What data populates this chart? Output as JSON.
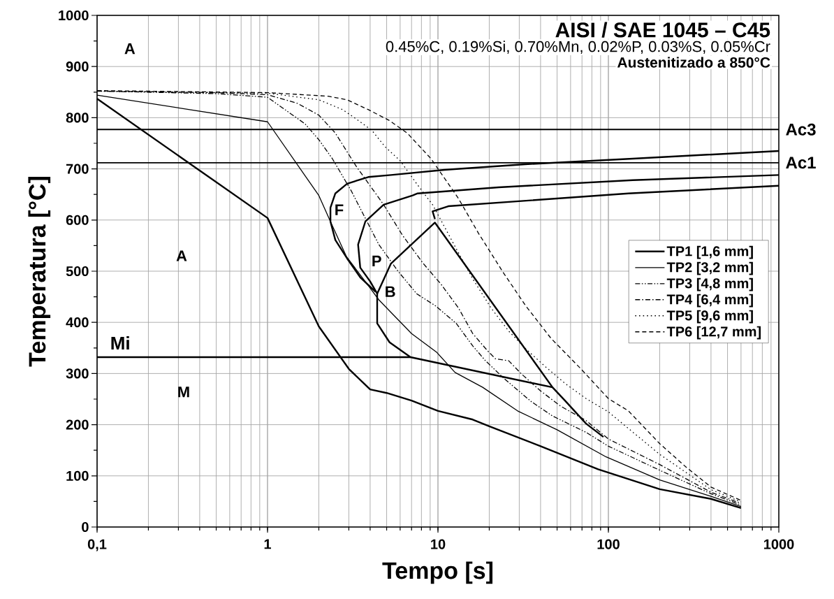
{
  "chart_data": {
    "type": "line",
    "title": "AISI / SAE 1045 – C45",
    "subtitle": "0.45%C, 0.19%Si, 0.70%Mn, 0.02%P, 0.03%S, 0.05%Cr",
    "xlabel": "Tempo [s]",
    "ylabel": "Temperatura [°C]",
    "log": "x",
    "grid": true,
    "legend": "right",
    "xlim": [
      0.1,
      1000
    ],
    "ylim": [
      0,
      1000
    ],
    "xticks": [
      {
        "value": 0.1,
        "label": "0,1"
      },
      1,
      10,
      100,
      1000
    ],
    "yticks": [
      0,
      100,
      200,
      300,
      400,
      500,
      600,
      700,
      800,
      900,
      1000
    ],
    "ref_lines": [
      {
        "axis": "y",
        "value": 777,
        "label": "Ac3"
      },
      {
        "axis": "y",
        "value": 712,
        "label": "Ac1"
      }
    ],
    "annotations": [
      "Austenitizado a 850°C",
      "A",
      "A",
      "M",
      "Mi",
      "F",
      "P",
      "B"
    ],
    "series": [
      {
        "name": "TP1 [1,6 mm]",
        "color": "#000000",
        "line_style": "solid",
        "x": [
          0.1,
          1,
          2,
          3,
          4,
          5,
          7,
          10,
          16,
          20,
          40,
          87,
          200,
          400,
          600
        ],
        "values": [
          837,
          604,
          392,
          309,
          269,
          262,
          247,
          227,
          210,
          197,
          158,
          113,
          74,
          55,
          37
        ]
      },
      {
        "name": "TP2 [3,2 mm]",
        "color": "#000000",
        "line_style": "solid",
        "x": [
          0.1,
          1,
          2,
          2.34,
          2.9,
          4,
          4.5,
          7,
          9.8,
          12.6,
          18.3,
          29.3,
          50,
          97,
          200,
          400,
          600
        ],
        "values": [
          844,
          792,
          648,
          597,
          529,
          467,
          444,
          378,
          342,
          302,
          273,
          227,
          190,
          137,
          92,
          60,
          40
        ]
      },
      {
        "name": "TP3 [4,8 mm]",
        "color": "#000000",
        "line_style": "dashdotdot",
        "x": [
          0.1,
          0.5,
          1,
          1.66,
          2,
          2.4,
          3.1,
          4.5,
          5.8,
          7.5,
          9.7,
          12.8,
          16,
          19,
          24.3,
          35,
          47,
          74,
          100,
          200,
          400,
          600
        ],
        "values": [
          852,
          847,
          840,
          788,
          757,
          720,
          657,
          552,
          501,
          456,
          432,
          398,
          354,
          325,
          291,
          246,
          217,
          185,
          158,
          111,
          65,
          43
        ]
      },
      {
        "name": "TP4 [6,4 mm]",
        "color": "#000000",
        "line_style": "dashdot",
        "x": [
          0.1,
          0.5,
          1,
          1.5,
          2,
          2.5,
          3.3,
          4.8,
          6.2,
          8.2,
          10.4,
          13.2,
          16,
          19.6,
          21.7,
          26,
          30.7,
          40,
          52.6,
          74,
          100,
          200,
          400,
          600
        ],
        "values": [
          852,
          849,
          845,
          828,
          805,
          770,
          706,
          630,
          570,
          515,
          475,
          428,
          378,
          344,
          329,
          325,
          300,
          266,
          236,
          208,
          172,
          122,
          68,
          46
        ]
      },
      {
        "name": "TP5 [9,6 mm]",
        "color": "#000000",
        "line_style": "dotted",
        "x": [
          0.1,
          1,
          2,
          2.75,
          3.3,
          4.1,
          4.9,
          6,
          7.5,
          9.3,
          12.8,
          16,
          20.5,
          26,
          32.8,
          42.5,
          56,
          74,
          100,
          200,
          400,
          600
        ],
        "values": [
          852,
          848,
          835,
          816,
          798,
          775,
          743,
          716,
          671,
          630,
          544,
          485,
          428,
          383,
          348,
          314,
          280,
          251,
          225,
          142,
          73,
          49
        ]
      },
      {
        "name": "TP6 [12,7 mm]",
        "color": "#000000",
        "line_style": "dashed",
        "x": [
          0.1,
          1,
          2.27,
          2.93,
          3.89,
          5.16,
          6.6,
          9.1,
          13.2,
          17.3,
          24.3,
          32.8,
          46,
          68.6,
          100,
          131,
          200,
          288,
          400,
          600
        ],
        "values": [
          853,
          849,
          842,
          835,
          816,
          795,
          770,
          720,
          642,
          574,
          496,
          432,
          369,
          310,
          251,
          227,
          163,
          116,
          78,
          52
        ]
      },
      {
        "color": "#000000",
        "line_style": "solid",
        "x": [
          1000,
          139,
          32.5,
          10.9,
          5.3,
          3.9,
          2.93,
          2.5,
          2.34,
          2.34,
          2.5,
          2.93,
          3.5,
          4.3
        ],
        "values": [
          735,
          720,
          709,
          698,
          688,
          684,
          671,
          652,
          624,
          597,
          561,
          525,
          488,
          460
        ]
      },
      {
        "color": "#000000",
        "line_style": "solid",
        "x": [
          1000,
          139,
          22.7,
          7.6,
          7.1,
          4.8,
          3.75,
          3.4,
          3.5,
          4.0,
          4.4,
          4.4,
          5.2,
          6.9,
          47
        ],
        "values": [
          688,
          678,
          664,
          652,
          648,
          630,
          597,
          552,
          507,
          480,
          456,
          398,
          361,
          332,
          273
        ]
      },
      {
        "color": "#000000",
        "line_style": "solid",
        "x": [
          1000,
          131,
          11.5,
          9.3,
          9.6
        ],
        "values": [
          667,
          652,
          627,
          617,
          602
        ]
      },
      {
        "color": "#000000",
        "line_style": "solid",
        "x": [
          4.4,
          5.3,
          9.6,
          47,
          56,
          74,
          93.5
        ],
        "values": [
          456,
          515,
          595,
          273,
          246,
          202,
          176
        ]
      },
      {
        "color": "#000000",
        "line_style": "solid",
        "x": [
          0.1,
          6.9
        ],
        "values": [
          332,
          332
        ]
      }
    ]
  }
}
